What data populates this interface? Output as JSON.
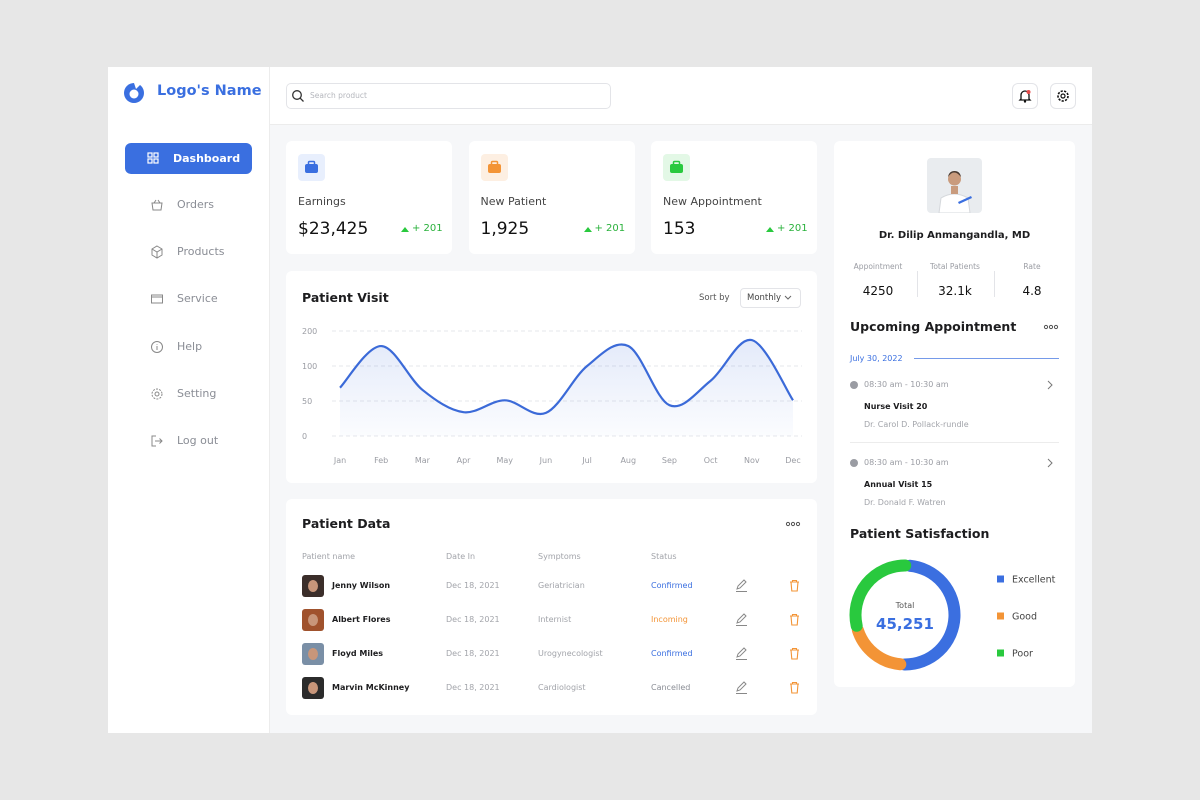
{
  "logo": "Logo's Name",
  "search_placeholder": "Search product",
  "nav": [
    "Dashboard",
    "Orders",
    "Products",
    "Service",
    "Help",
    "Setting",
    "Log out"
  ],
  "stats": [
    {
      "label": "Earnings",
      "value": "$23,425",
      "change": "+ 201"
    },
    {
      "label": "New Patient",
      "value": "1,925",
      "change": "+ 201"
    },
    {
      "label": "New Appointment",
      "value": "153",
      "change": "+ 201"
    }
  ],
  "patient_visit": {
    "sort_label": "Sort by",
    "sort_value": "Monthly"
  },
  "chart_data": [
    {
      "type": "line",
      "title": "Patient Visit",
      "categories": [
        "Jan",
        "Feb",
        "Mar",
        "Apr",
        "May",
        "Jun",
        "Jul",
        "Aug",
        "Sep",
        "Oct",
        "Nov",
        "Dec"
      ],
      "values": [
        69,
        157,
        66,
        34,
        51,
        33,
        100,
        157,
        44,
        79,
        174,
        51
      ],
      "color": "#3b6ad8",
      "ylim": [
        0,
        200
      ],
      "yticks": [
        0,
        50,
        100,
        200
      ],
      "grid": true
    },
    {
      "type": "pie",
      "title": "Patient Satisfaction",
      "center_label": "Total",
      "center_value": "45,251",
      "categories": [
        "Excellent",
        "Good",
        "Poor"
      ],
      "values": [
        50,
        20,
        30
      ],
      "colors": [
        "#3b6fe0",
        "#f39436",
        "#29c93e"
      ]
    }
  ],
  "patient_data": {
    "title": "Patient Data",
    "headers": [
      "Patient name",
      "Date In",
      "Symptoms",
      "Status"
    ],
    "rows": [
      [
        "Jenny Wilson",
        "Dec 18, 2021",
        "Geriatrician",
        "Confirmed"
      ],
      [
        "Albert Flores",
        "Dec 18, 2021",
        "Internist",
        "Incoming"
      ],
      [
        "Floyd Miles",
        "Dec 18, 2021",
        "Urogynecologist",
        "Confirmed"
      ],
      [
        "Marvin McKinney",
        "Dec 18, 2021",
        "Cardiologist",
        "Cancelled"
      ]
    ]
  },
  "doctor": {
    "name": "Dr. Dilip Anmangandla, MD",
    "stats": [
      {
        "label": "Appointment",
        "value": "4250"
      },
      {
        "label": "Total Patients",
        "value": "32.1k"
      },
      {
        "label": "Rate",
        "value": "4.8"
      }
    ]
  },
  "upcoming": {
    "title": "Upcoming Appointment",
    "date": "July 30, 2022",
    "items": [
      {
        "time": "08:30 am - 10:30 am",
        "title": "Nurse Visit 20",
        "doctor": "Dr. Carol D. Pollack-rundle"
      },
      {
        "time": "08:30 am - 10:30 am",
        "title": "Annual Visit 15",
        "doctor": "Dr. Donald F. Watren"
      }
    ]
  }
}
